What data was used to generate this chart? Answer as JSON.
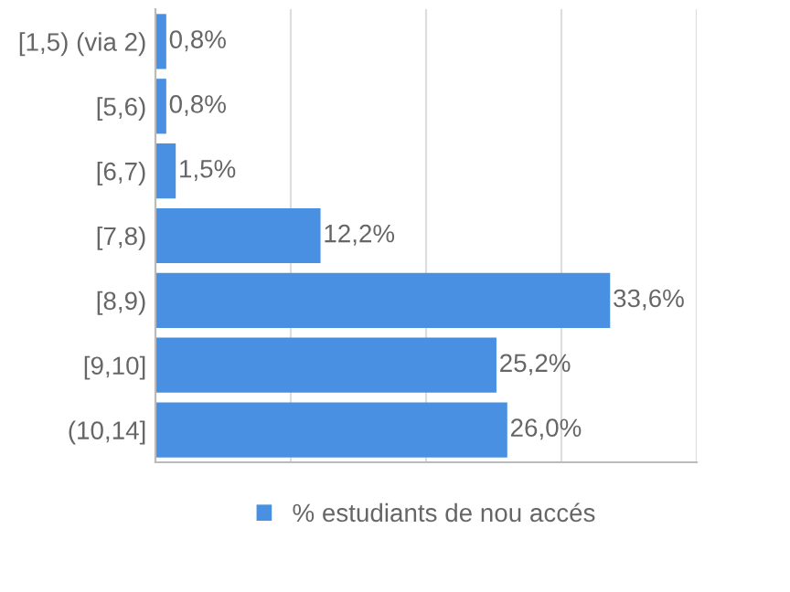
{
  "chart_data": {
    "type": "bar",
    "orientation": "horizontal",
    "categories": [
      "[1,5) (via 2)",
      "[5,6)",
      "[6,7)",
      "[7,8)",
      "[8,9)",
      "[9,10]",
      "(10,14]"
    ],
    "series": [
      {
        "name": "% estudiants de nou accés",
        "color": "#4a90e2",
        "values": [
          0.8,
          0.8,
          1.5,
          12.2,
          33.6,
          25.2,
          26.0
        ],
        "value_labels": [
          "0,8%",
          "0,8%",
          "1,5%",
          "12,2%",
          "33,6%",
          "25,2%",
          "26,0%"
        ]
      }
    ],
    "xlim": [
      0,
      40
    ],
    "xticks": [
      {
        "value": 0,
        "label": null
      },
      {
        "value": 10,
        "label": null
      },
      {
        "value": 20,
        "label": null
      },
      {
        "value": 30,
        "label": null
      },
      {
        "value": 40,
        "label": null
      }
    ],
    "tick_labels": "y",
    "grid": "x",
    "legend": "bottom"
  }
}
